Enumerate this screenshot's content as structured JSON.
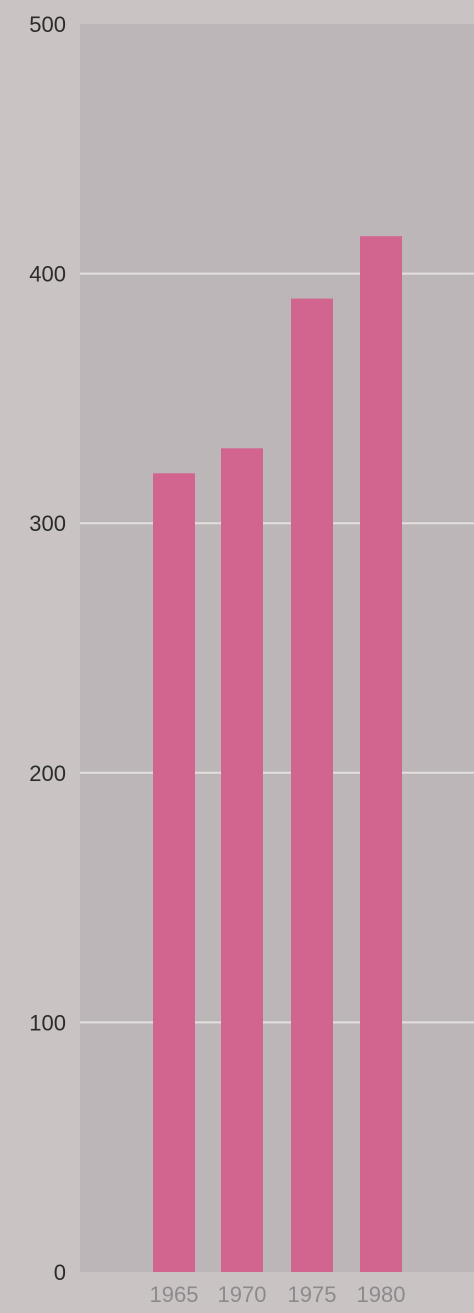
{
  "chart_data": {
    "type": "bar",
    "title": "",
    "xlabel": "",
    "ylabel": "",
    "categories": [
      "1965",
      "1970",
      "1975",
      "1980"
    ],
    "values": [
      320,
      330,
      390,
      415
    ],
    "ylim": [
      0,
      500
    ],
    "yticks": [
      "0",
      "100",
      "200",
      "300",
      "400",
      "500"
    ],
    "grid": true,
    "legend": "none"
  },
  "colors": {
    "bar": "#d2658f",
    "plot_bg": "#bcb6b9",
    "page_bg": "#c9c4c3",
    "grid": "#e4e0e0",
    "tick_text": "#2b2b2b",
    "cat_text": "#8c8a8c"
  }
}
